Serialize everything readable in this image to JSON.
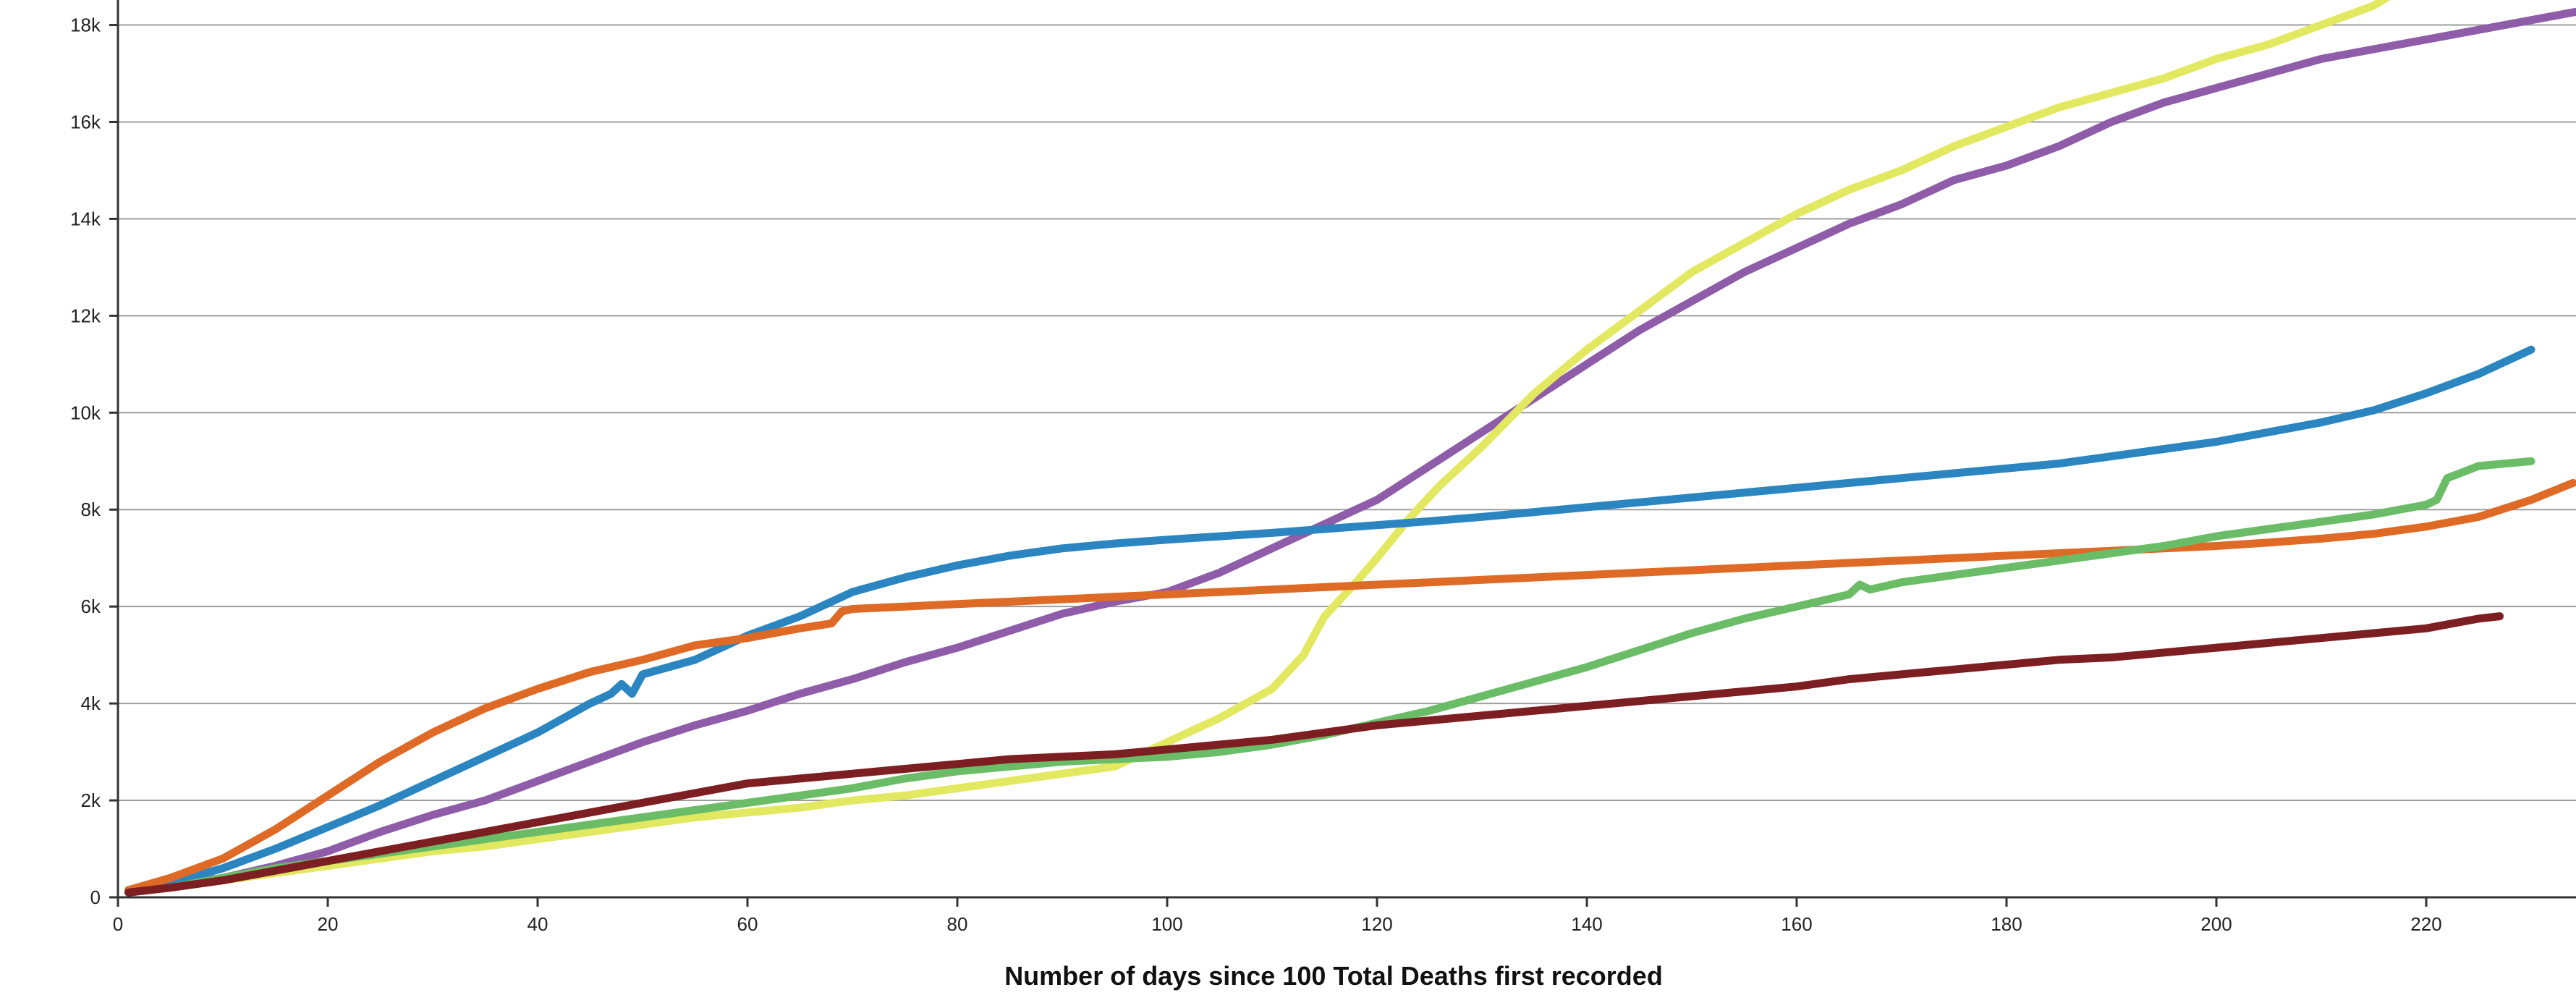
{
  "chart_data": {
    "type": "line",
    "title": "",
    "xlabel": "Number of days since 100 Total Deaths first recorded",
    "ylabel": "",
    "xlim": [
      0,
      235
    ],
    "ylim": [
      0,
      18500
    ],
    "x_ticks": [
      0,
      20,
      40,
      60,
      80,
      100,
      120,
      140,
      160,
      180,
      200,
      220
    ],
    "x_tick_labels": [
      "0",
      "20",
      "40",
      "60",
      "80",
      "100",
      "120",
      "140",
      "160",
      "180",
      "200",
      "220"
    ],
    "y_ticks": [
      0,
      2000,
      4000,
      6000,
      8000,
      10000,
      12000,
      14000,
      16000,
      18000
    ],
    "y_tick_labels": [
      "0",
      "2k",
      "4k",
      "6k",
      "8k",
      "10k",
      "12k",
      "14k",
      "16k",
      "18k"
    ],
    "grid": "horizontal",
    "legend": "none",
    "series": [
      {
        "color": "#8e5ca8",
        "x": [
          1,
          5,
          10,
          15,
          20,
          25,
          30,
          35,
          40,
          45,
          50,
          55,
          60,
          65,
          70,
          75,
          80,
          85,
          90,
          95,
          100,
          105,
          110,
          115,
          120,
          125,
          130,
          135,
          140,
          145,
          150,
          155,
          160,
          165,
          170,
          175,
          180,
          185,
          190,
          195,
          200,
          205,
          210,
          215,
          220,
          225,
          230,
          235
        ],
        "y": [
          150,
          250,
          400,
          650,
          950,
          1350,
          1700,
          2000,
          2400,
          2800,
          3200,
          3550,
          3850,
          4200,
          4500,
          4850,
          5150,
          5500,
          5850,
          6100,
          6300,
          6700,
          7200,
          7700,
          8200,
          8900,
          9600,
          10300,
          11000,
          11700,
          12300,
          12900,
          13400,
          13900,
          14300,
          14800,
          15100,
          15500,
          16000,
          16400,
          16700,
          17000,
          17300,
          17500,
          17700,
          17900,
          18100,
          18300
        ]
      },
      {
        "color": "#e2e85f",
        "x": [
          1,
          5,
          10,
          15,
          20,
          25,
          30,
          35,
          40,
          45,
          50,
          55,
          60,
          65,
          70,
          75,
          80,
          85,
          90,
          95,
          100,
          105,
          110,
          113,
          115,
          118,
          120,
          123,
          126,
          130,
          135,
          140,
          145,
          150,
          155,
          160,
          165,
          170,
          175,
          180,
          185,
          190,
          195,
          200,
          205,
          210,
          215,
          218
        ],
        "y": [
          100,
          200,
          350,
          500,
          650,
          800,
          950,
          1050,
          1200,
          1350,
          1500,
          1650,
          1750,
          1850,
          2000,
          2100,
          2250,
          2400,
          2550,
          2700,
          3200,
          3700,
          4300,
          5000,
          5800,
          6500,
          7000,
          7800,
          8500,
          9300,
          10400,
          11300,
          12100,
          12900,
          13500,
          14100,
          14600,
          15000,
          15500,
          15900,
          16300,
          16600,
          16900,
          17300,
          17600,
          18000,
          18400,
          18800
        ]
      },
      {
        "color": "#2a85c0",
        "x": [
          1,
          5,
          10,
          15,
          20,
          25,
          30,
          35,
          40,
          45,
          47,
          48,
          49,
          50,
          55,
          60,
          65,
          70,
          75,
          80,
          85,
          90,
          95,
          100,
          105,
          110,
          115,
          120,
          125,
          130,
          135,
          140,
          145,
          150,
          155,
          160,
          165,
          170,
          175,
          180,
          185,
          190,
          195,
          200,
          205,
          210,
          215,
          220,
          225,
          230
        ],
        "y": [
          150,
          300,
          600,
          1000,
          1450,
          1900,
          2400,
          2900,
          3400,
          4000,
          4200,
          4400,
          4200,
          4600,
          4900,
          5400,
          5800,
          6300,
          6600,
          6850,
          7050,
          7200,
          7300,
          7380,
          7450,
          7520,
          7600,
          7680,
          7760,
          7850,
          7950,
          8050,
          8150,
          8250,
          8350,
          8450,
          8550,
          8650,
          8750,
          8850,
          8950,
          9100,
          9250,
          9400,
          9600,
          9800,
          10050,
          10400,
          10800,
          11300
        ]
      },
      {
        "color": "#df6a26",
        "x": [
          1,
          5,
          10,
          15,
          20,
          25,
          30,
          35,
          40,
          45,
          50,
          55,
          60,
          65,
          68,
          69,
          70,
          75,
          80,
          85,
          90,
          95,
          100,
          105,
          110,
          115,
          120,
          125,
          130,
          135,
          140,
          145,
          150,
          155,
          160,
          165,
          170,
          175,
          180,
          185,
          190,
          195,
          200,
          205,
          210,
          215,
          220,
          225,
          230,
          234
        ],
        "y": [
          150,
          400,
          800,
          1400,
          2100,
          2800,
          3400,
          3900,
          4300,
          4650,
          4900,
          5200,
          5350,
          5550,
          5650,
          5900,
          5950,
          6000,
          6050,
          6100,
          6150,
          6200,
          6250,
          6300,
          6350,
          6400,
          6450,
          6500,
          6550,
          6600,
          6650,
          6700,
          6750,
          6800,
          6850,
          6900,
          6950,
          7000,
          7050,
          7100,
          7150,
          7200,
          7250,
          7320,
          7400,
          7500,
          7650,
          7850,
          8200,
          8550
        ]
      },
      {
        "color": "#6abd66",
        "x": [
          1,
          5,
          10,
          15,
          20,
          25,
          30,
          35,
          40,
          45,
          50,
          55,
          60,
          65,
          70,
          75,
          80,
          85,
          90,
          95,
          100,
          105,
          110,
          115,
          120,
          125,
          130,
          135,
          140,
          145,
          150,
          155,
          160,
          165,
          166,
          167,
          170,
          175,
          180,
          185,
          190,
          195,
          200,
          205,
          210,
          215,
          220,
          221,
          222,
          225,
          230
        ],
        "y": [
          100,
          200,
          400,
          600,
          750,
          900,
          1050,
          1200,
          1350,
          1500,
          1650,
          1800,
          1950,
          2100,
          2250,
          2450,
          2600,
          2700,
          2800,
          2850,
          2900,
          3000,
          3150,
          3350,
          3600,
          3850,
          4150,
          4450,
          4750,
          5100,
          5450,
          5750,
          6000,
          6250,
          6450,
          6350,
          6500,
          6650,
          6800,
          6950,
          7100,
          7250,
          7450,
          7600,
          7750,
          7900,
          8100,
          8200,
          8650,
          8900,
          9000
        ]
      },
      {
        "color": "#7d1e22",
        "x": [
          1,
          5,
          10,
          15,
          20,
          25,
          30,
          35,
          40,
          45,
          50,
          55,
          60,
          65,
          70,
          75,
          80,
          85,
          90,
          95,
          100,
          105,
          110,
          115,
          120,
          125,
          130,
          135,
          140,
          145,
          150,
          155,
          160,
          165,
          170,
          175,
          180,
          185,
          190,
          195,
          200,
          205,
          210,
          215,
          220,
          225,
          227
        ],
        "y": [
          100,
          200,
          350,
          550,
          750,
          950,
          1150,
          1350,
          1550,
          1750,
          1950,
          2150,
          2350,
          2450,
          2550,
          2650,
          2750,
          2850,
          2900,
          2950,
          3050,
          3150,
          3250,
          3400,
          3550,
          3650,
          3750,
          3850,
          3950,
          4050,
          4150,
          4250,
          4350,
          4500,
          4600,
          4700,
          4800,
          4900,
          4950,
          5050,
          5150,
          5250,
          5350,
          5450,
          5550,
          5750,
          5800
        ]
      }
    ]
  }
}
